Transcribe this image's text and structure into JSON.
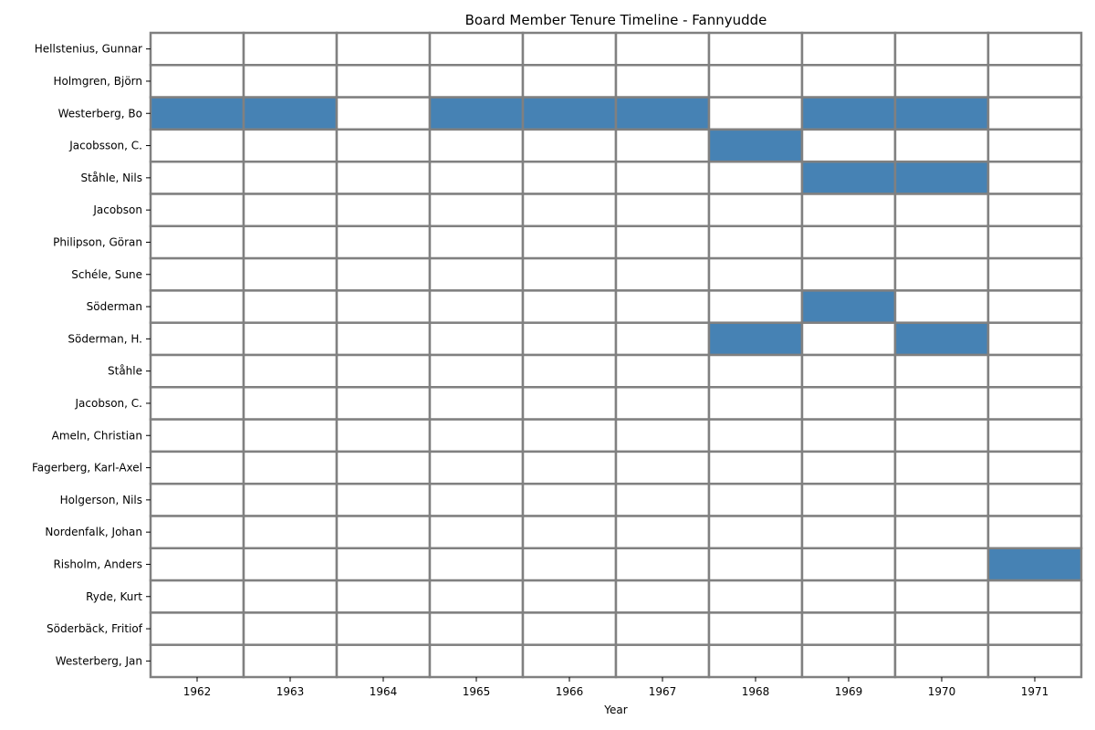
{
  "chart_data": {
    "type": "heatmap",
    "title": "Board Member Tenure Timeline - Fannyudde",
    "xlabel": "Year",
    "ylabel": "",
    "years": [
      "1962",
      "1963",
      "1964",
      "1965",
      "1966",
      "1967",
      "1968",
      "1969",
      "1970",
      "1971"
    ],
    "members": [
      "Hellstenius, Gunnar",
      "Holmgren, Björn",
      "Westerberg, Bo",
      "Jacobsson, C.",
      "Ståhle, Nils",
      "Jacobson",
      "Philipson, Göran",
      "Schéle, Sune",
      "Söderman",
      "Söderman, H.",
      "Ståhle",
      "Jacobson, C.",
      "Ameln, Christian",
      "Fagerberg, Karl-Axel",
      "Holgerson, Nils",
      "Nordenfalk, Johan",
      "Risholm, Anders",
      "Ryde, Kurt",
      "Söderbäck, Fritiof",
      "Westerberg, Jan"
    ],
    "tenure": [
      [
        0,
        0,
        0,
        0,
        0,
        0,
        0,
        0,
        0,
        0
      ],
      [
        0,
        0,
        0,
        0,
        0,
        0,
        0,
        0,
        0,
        0
      ],
      [
        1,
        1,
        0,
        1,
        1,
        1,
        0,
        1,
        1,
        0
      ],
      [
        0,
        0,
        0,
        0,
        0,
        0,
        1,
        0,
        0,
        0
      ],
      [
        0,
        0,
        0,
        0,
        0,
        0,
        0,
        1,
        1,
        0
      ],
      [
        0,
        0,
        0,
        0,
        0,
        0,
        0,
        0,
        0,
        0
      ],
      [
        0,
        0,
        0,
        0,
        0,
        0,
        0,
        0,
        0,
        0
      ],
      [
        0,
        0,
        0,
        0,
        0,
        0,
        0,
        0,
        0,
        0
      ],
      [
        0,
        0,
        0,
        0,
        0,
        0,
        0,
        1,
        0,
        0
      ],
      [
        0,
        0,
        0,
        0,
        0,
        0,
        1,
        0,
        1,
        0
      ],
      [
        0,
        0,
        0,
        0,
        0,
        0,
        0,
        0,
        0,
        0
      ],
      [
        0,
        0,
        0,
        0,
        0,
        0,
        0,
        0,
        0,
        0
      ],
      [
        0,
        0,
        0,
        0,
        0,
        0,
        0,
        0,
        0,
        0
      ],
      [
        0,
        0,
        0,
        0,
        0,
        0,
        0,
        0,
        0,
        0
      ],
      [
        0,
        0,
        0,
        0,
        0,
        0,
        0,
        0,
        0,
        0
      ],
      [
        0,
        0,
        0,
        0,
        0,
        0,
        0,
        0,
        0,
        0
      ],
      [
        0,
        0,
        0,
        0,
        0,
        0,
        0,
        0,
        0,
        1
      ],
      [
        0,
        0,
        0,
        0,
        0,
        0,
        0,
        0,
        0,
        0
      ],
      [
        0,
        0,
        0,
        0,
        0,
        0,
        0,
        0,
        0,
        0
      ],
      [
        0,
        0,
        0,
        0,
        0,
        0,
        0,
        0,
        0,
        0
      ]
    ],
    "colors": {
      "active": "#4682b4",
      "inactive": "#ffffff",
      "grid": "#808080"
    }
  }
}
